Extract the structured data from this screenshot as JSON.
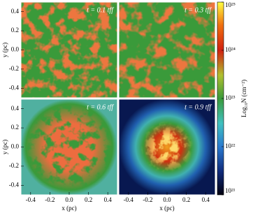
{
  "chart_data": [
    {
      "type": "heatmap",
      "annotation": "t = 0.1 tff",
      "ylabel": "y (pc)",
      "ylim": [
        -0.5,
        0.5
      ],
      "yticks": [
        -0.4,
        -0.2,
        {
          "value": 0,
          "label": "0.0"
        },
        0.2,
        0.4
      ]
    },
    {
      "type": "heatmap",
      "annotation": "t = 0.3 tff"
    },
    {
      "type": "heatmap",
      "annotation": "t = 0.6 tff",
      "xlabel": "x (pc)",
      "ylabel": "y (pc)",
      "xlim": [
        -0.5,
        0.5
      ],
      "ylim": [
        -0.5,
        0.5
      ],
      "xticks": [
        -0.4,
        -0.2,
        {
          "value": 0,
          "label": "0.0"
        },
        0.2,
        0.4
      ],
      "yticks": [
        -0.4,
        -0.2,
        {
          "value": 0,
          "label": "0.0"
        },
        0.2,
        0.4
      ]
    },
    {
      "type": "heatmap",
      "annotation": "t = 0.9 tff",
      "xlabel": "x (pc)",
      "xlim": [
        -0.5,
        0.5
      ],
      "xticks": [
        -0.4,
        -0.2,
        {
          "value": 0,
          "label": "0.0"
        },
        0.2,
        0.4
      ]
    }
  ],
  "colorbar": {
    "label": "Log₁₀N (cm⁻²)",
    "scale": "log",
    "lim": [
      1e+21,
      1e+25
    ],
    "ticks": [
      {
        "value": 1e+21,
        "label": "10²¹"
      },
      {
        "value": 1e+22,
        "label": "10²²"
      },
      {
        "value": 1e+23,
        "label": "10²³"
      },
      {
        "value": 1e+24,
        "label": "10²⁴"
      },
      {
        "value": 1e+25,
        "label": "10²⁵"
      }
    ]
  }
}
